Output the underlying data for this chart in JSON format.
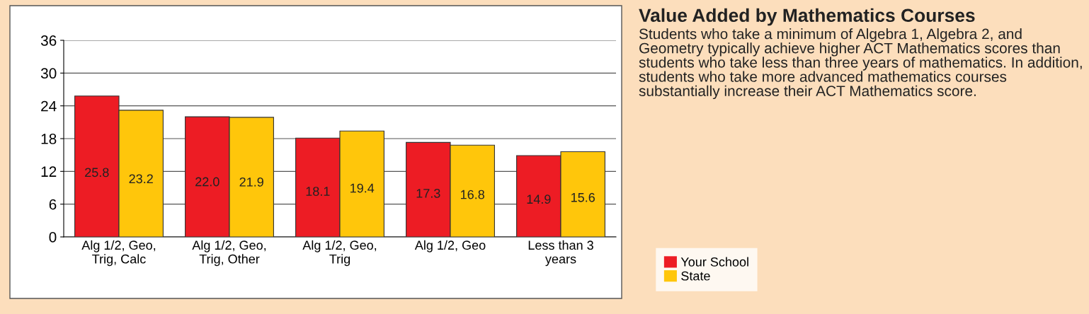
{
  "chart_data": {
    "type": "bar",
    "title": "Value Added by Mathematics Courses",
    "subtitle": "Students who take a minimum of Algebra 1, Algebra 2, and Geometry typically achieve higher ACT Mathematics scores than students who take less than three years of mathematics. In addition, students who take more advanced mathematics courses substantially increase their ACT Mathematics score.",
    "categories": [
      "Alg 1/2, Geo,\nTrig, Calc",
      "Alg 1/2, Geo,\nTrig, Other",
      "Alg 1/2, Geo,\nTrig",
      "Alg 1/2, Geo",
      "Less than 3\nyears"
    ],
    "series": [
      {
        "name": "Your School",
        "color": "#ed1c24",
        "values": [
          25.8,
          22.0,
          18.1,
          17.3,
          14.9
        ],
        "value_labels": [
          "25.8",
          "22.0",
          "18.1",
          "17.3",
          "14.9"
        ]
      },
      {
        "name": "State",
        "color": "#ffc60b",
        "values": [
          23.2,
          21.9,
          19.4,
          16.8,
          15.6
        ],
        "value_labels": [
          "23.2",
          "21.9",
          "19.4",
          "16.8",
          "15.6"
        ]
      }
    ],
    "ylim": [
      0,
      36
    ],
    "yticks": [
      0,
      6,
      12,
      18,
      24,
      30,
      36
    ],
    "grid": "y",
    "legend": "right"
  }
}
